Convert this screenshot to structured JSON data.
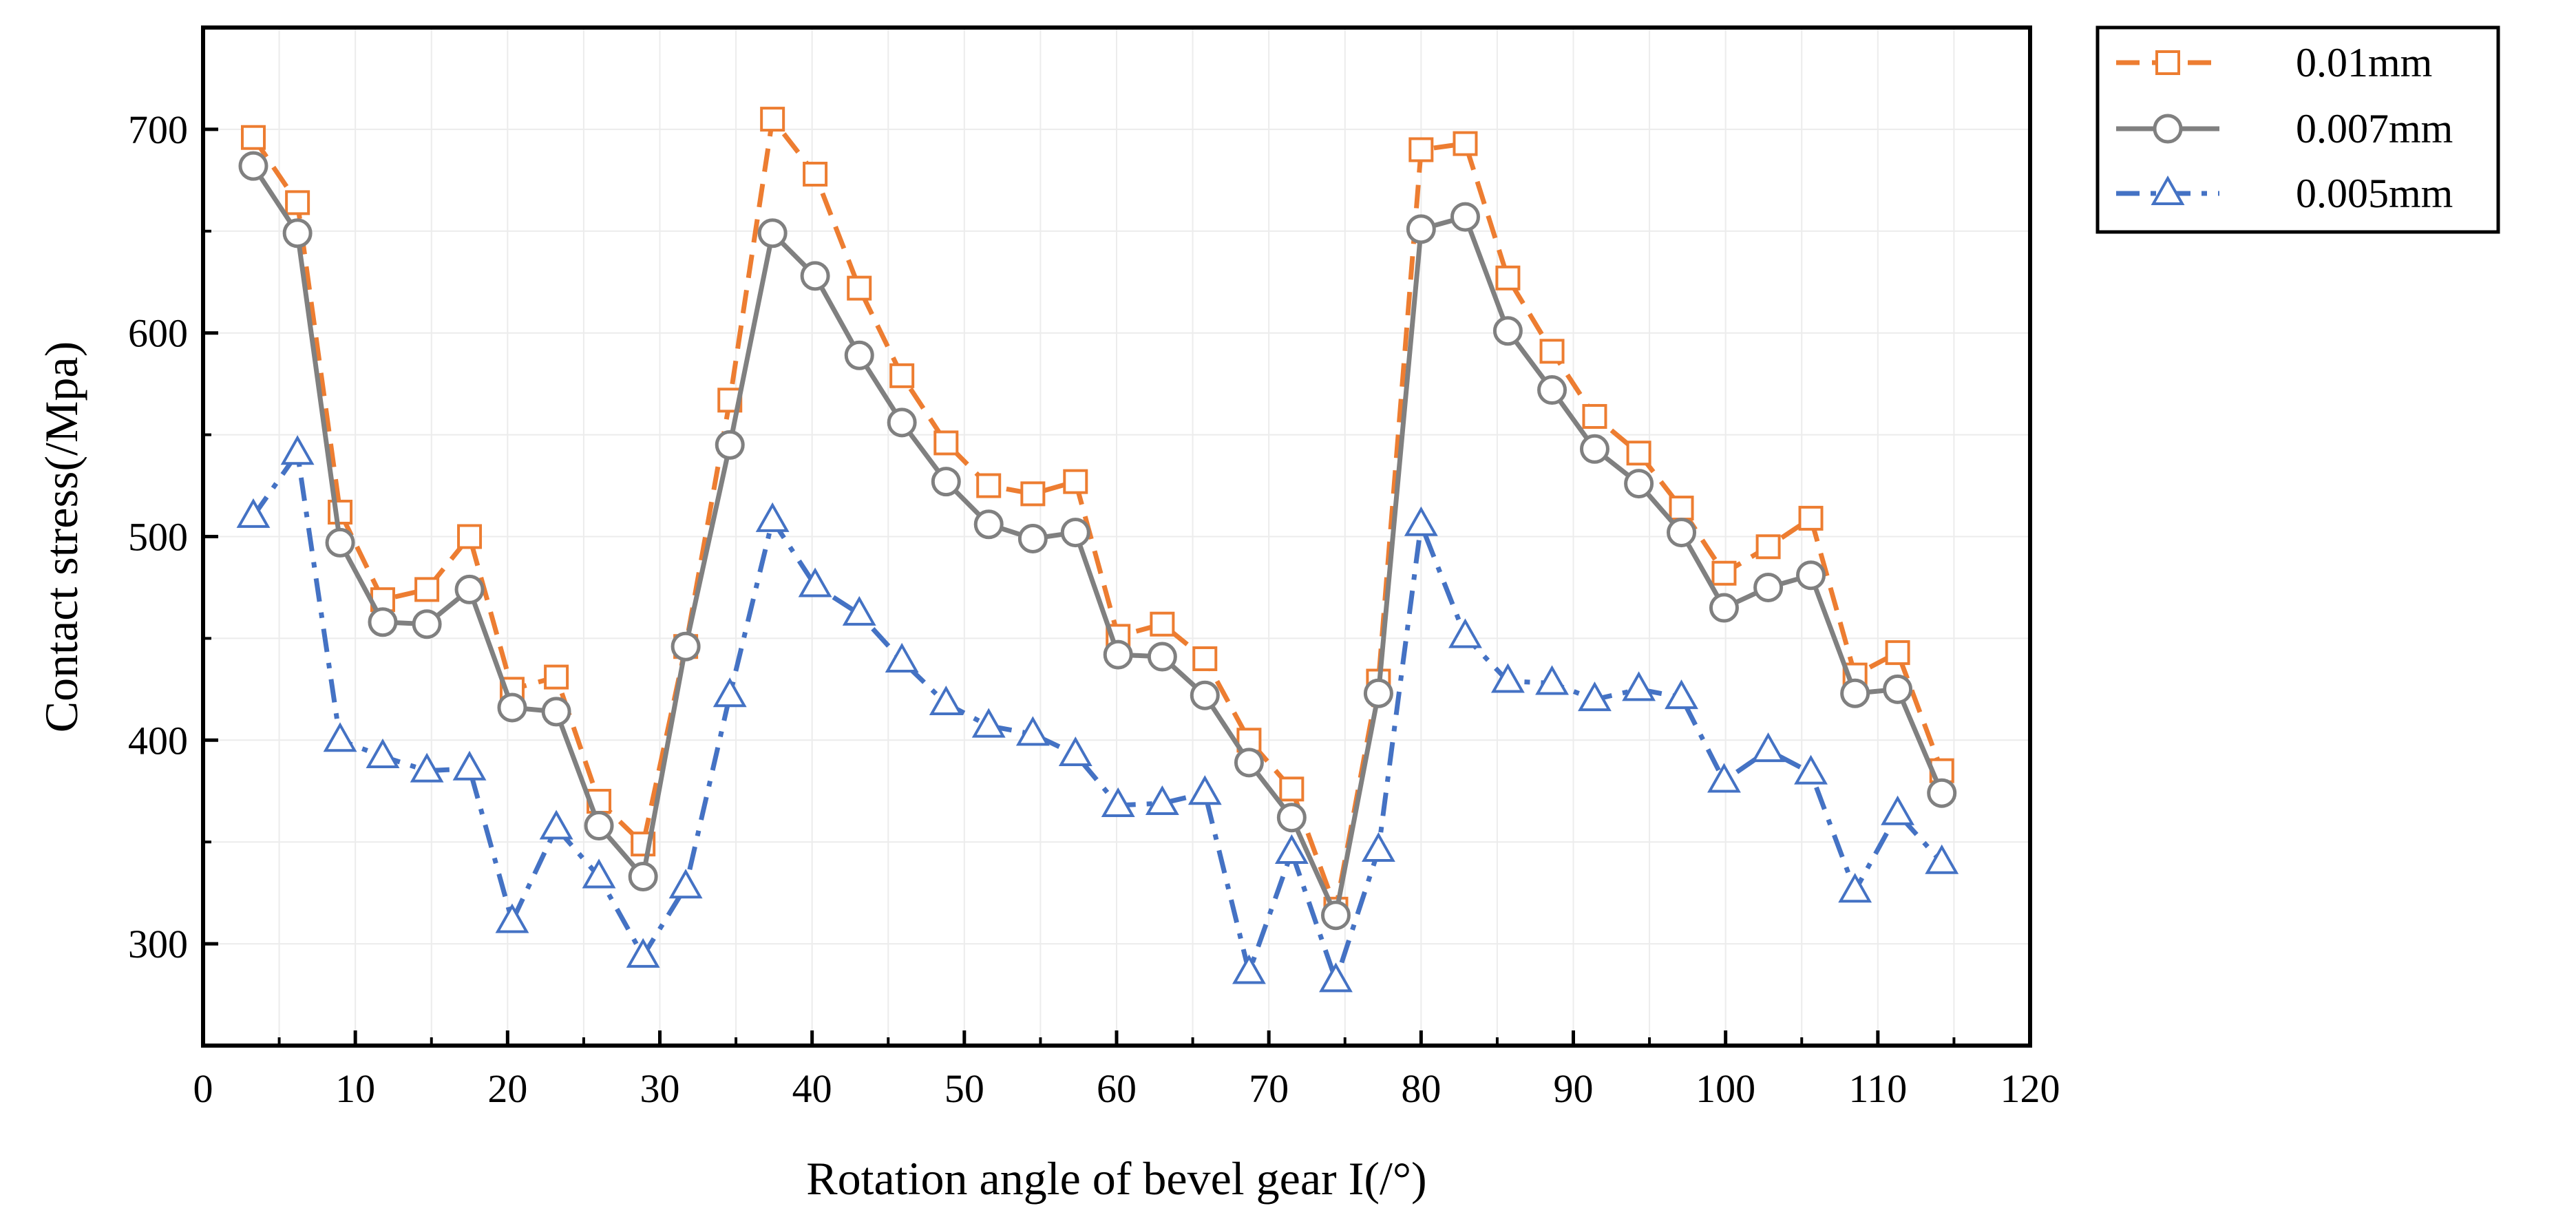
{
  "chart_data": {
    "type": "line",
    "title": "",
    "xlabel": "Rotation angle of bevel gear I(/°)",
    "ylabel": "Contact stress(/Mpa)",
    "xlim": [
      0,
      120
    ],
    "ylim": [
      250,
      750
    ],
    "xticks": [
      0,
      10,
      20,
      30,
      40,
      50,
      60,
      70,
      80,
      90,
      100,
      110,
      120
    ],
    "yticks": [
      300,
      400,
      500,
      600,
      700
    ],
    "grid": true,
    "legend_position": "outside-top-right",
    "x": [
      3.3,
      6.2,
      9.0,
      11.8,
      14.7,
      17.5,
      20.3,
      23.2,
      26.0,
      28.9,
      31.7,
      34.6,
      37.4,
      40.2,
      43.1,
      45.9,
      48.8,
      51.6,
      54.5,
      57.3,
      60.1,
      63.0,
      65.8,
      68.7,
      71.5,
      74.4,
      77.2,
      80.0,
      82.9,
      85.7,
      88.6,
      91.4,
      94.3,
      97.1,
      99.9,
      102.8,
      105.6,
      108.5,
      111.3,
      114.2
    ],
    "series": [
      {
        "name": "0.01mm",
        "color": "#ED7D31",
        "marker": "square",
        "line_style": "dashed",
        "values": [
          696,
          664,
          512,
          469,
          474,
          500,
          425,
          431,
          370,
          349,
          446,
          567,
          705,
          678,
          622,
          579,
          546,
          525,
          521,
          527,
          451,
          457,
          440,
          400,
          376,
          317,
          429,
          690,
          693,
          627,
          591,
          559,
          541,
          514,
          482,
          495,
          509,
          432,
          443,
          385
        ]
      },
      {
        "name": "0.007mm",
        "color": "#808080",
        "marker": "circle",
        "line_style": "solid",
        "values": [
          682,
          649,
          497,
          458,
          457,
          474,
          416,
          414,
          358,
          333,
          446,
          545,
          649,
          628,
          589,
          556,
          527,
          506,
          499,
          502,
          442,
          441,
          422,
          389,
          362,
          314,
          423,
          651,
          657,
          601,
          572,
          543,
          526,
          502,
          465,
          475,
          481,
          423,
          425,
          374
        ]
      },
      {
        "name": "0.005mm",
        "color": "#4472C4",
        "marker": "triangle",
        "line_style": "dashdot",
        "values": [
          510,
          541,
          400,
          392,
          385,
          386,
          311,
          357,
          333,
          294,
          328,
          422,
          508,
          476,
          462,
          439,
          418,
          407,
          403,
          393,
          368,
          369,
          374,
          286,
          345,
          282,
          346,
          506,
          451,
          429,
          428,
          420,
          425,
          421,
          380,
          395,
          384,
          326,
          364,
          340
        ]
      }
    ]
  }
}
